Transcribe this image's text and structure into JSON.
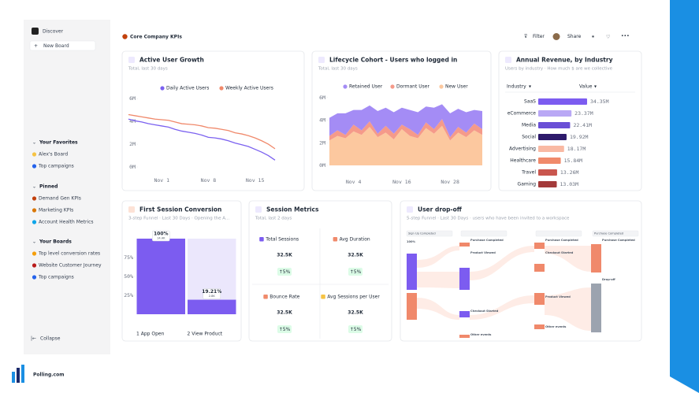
{
  "sidebar": {
    "discover": "Discover",
    "new_board": "New Board",
    "sections": [
      {
        "title": "Your Favorites",
        "items": [
          "Alex's Board",
          "Top campaigns"
        ]
      },
      {
        "title": "Pinned",
        "items": [
          "Demand Gen KPIs",
          "Marketing KPIs",
          "Account Health Metrics"
        ]
      },
      {
        "title": "Your Boards",
        "items": [
          "Top level conversion rates",
          "Website Customer Journey",
          "Top campaigns"
        ]
      }
    ],
    "collapse": "Collapse"
  },
  "header": {
    "title": "Core Company KPIs",
    "filter": "Filter",
    "share": "Share"
  },
  "chart_data": [
    {
      "type": "line",
      "title": "Active User Growth",
      "subtitle": "Total, last 30 days",
      "categories": [
        null,
        null,
        null,
        null,
        null,
        "Nov 1",
        null,
        null,
        null,
        null,
        null,
        null,
        "Nov 8",
        null,
        null,
        null,
        null,
        null,
        null,
        "Nov 15",
        null,
        null,
        null
      ],
      "series": [
        {
          "name": "Daily Active Users",
          "color": "#7b61f0",
          "values": [
            4.2,
            4.05,
            3.95,
            3.8,
            3.7,
            3.6,
            3.5,
            3.3,
            3.15,
            3.05,
            2.95,
            2.8,
            2.6,
            2.55,
            2.45,
            2.3,
            2.1,
            1.95,
            1.8,
            1.55,
            1.3,
            1.0,
            0.6
          ]
        },
        {
          "name": "Weekly Active Users",
          "color": "#f0896b",
          "values": [
            4.6,
            4.5,
            4.4,
            4.3,
            4.2,
            4.15,
            4.1,
            3.95,
            3.8,
            3.75,
            3.7,
            3.6,
            3.45,
            3.4,
            3.3,
            3.2,
            3.0,
            2.9,
            2.75,
            2.55,
            2.3,
            2.0,
            1.6
          ]
        }
      ],
      "ylim": [
        0,
        6.5
      ],
      "yticks": [
        {
          "value": 0,
          "label": "0M"
        },
        {
          "value": 2,
          "label": "2M"
        },
        {
          "value": 4,
          "label": "4M"
        },
        {
          "value": 6,
          "label": "6M"
        }
      ]
    },
    {
      "type": "area",
      "stacked": true,
      "title": "Lifecycle Cohort - Users who logged in",
      "subtitle": "Total, last 30 days",
      "categories": [
        null,
        null,
        null,
        "Nov 4",
        null,
        null,
        null,
        null,
        null,
        "Nov 16",
        null,
        null,
        null,
        null,
        null,
        "Nov 28",
        null,
        null,
        null,
        null
      ],
      "series": [
        {
          "name": "Retained User",
          "color": "#a48cf5",
          "values": [
            1.6,
            1.5,
            1.9,
            1.3,
            1.8,
            1.4,
            2.0,
            1.6,
            1.9,
            1.5,
            1.7,
            2.0,
            1.4,
            1.9,
            1.3,
            2.1,
            1.6,
            1.8,
            1.2,
            1.6
          ]
        },
        {
          "name": "Dormant User",
          "color": "#f59a8a",
          "values": [
            0.4,
            0.5,
            0.3,
            0.6,
            0.4,
            0.5,
            0.3,
            0.6,
            0.5,
            0.4,
            0.6,
            0.3,
            0.5,
            0.4,
            0.6,
            0.3,
            0.5,
            0.4,
            0.6,
            0.5
          ]
        },
        {
          "name": "New User",
          "color": "#fcc89f",
          "values": [
            2.2,
            2.6,
            2.4,
            3.0,
            2.7,
            3.4,
            2.5,
            2.9,
            2.3,
            3.2,
            2.6,
            2.4,
            3.3,
            2.8,
            3.5,
            2.2,
            2.9,
            2.5,
            3.1,
            2.7
          ]
        }
      ],
      "ylim": [
        0,
        6.4
      ],
      "yticks": [
        {
          "value": 0,
          "label": "0M"
        },
        {
          "value": 2,
          "label": "2M"
        },
        {
          "value": 4,
          "label": "4M"
        },
        {
          "value": 6,
          "label": "6M"
        }
      ]
    },
    {
      "type": "bar",
      "orientation": "horizontal",
      "title": "Annual Revenue, by Industry",
      "subtitle": "Users by industry · How much $ are we collective",
      "column_headers": [
        "Industry",
        "Value"
      ],
      "categories": [
        "SaaS",
        "eCommerce",
        "Media",
        "Social",
        "Advertising",
        "Healthcare",
        "Travel",
        "Gaming"
      ],
      "values": [
        34.35,
        23.37,
        22.41,
        19.92,
        18.17,
        15.84,
        13.26,
        13.03
      ],
      "value_labels": [
        "34.35M",
        "23.37M",
        "22.41M",
        "19.92M",
        "18.17M",
        "15.84M",
        "13.26M",
        "13.03M"
      ],
      "colors": [
        "#7c5cf0",
        "#b9a8f5",
        "#6a4fd6",
        "#2d1a6b",
        "#f9b9a3",
        "#f08a6b",
        "#c9564e",
        "#a33a3a"
      ]
    },
    {
      "type": "bar",
      "orientation": "vertical",
      "title": "First Session Conversion",
      "subtitle": "3-step Funnel · Last 30 Days · Opening the A...",
      "categories": [
        "1 App Open",
        "2 View Product"
      ],
      "values": [
        100,
        19.21
      ],
      "value_labels": [
        "100%",
        "19.21%"
      ],
      "count_labels": [
        "14.4K",
        "2.8K"
      ],
      "color": "#7c5cf0",
      "ylim": [
        0,
        100
      ],
      "yticks": [
        {
          "value": 25,
          "label": "25%"
        },
        {
          "value": 50,
          "label": "50%"
        },
        {
          "value": 75,
          "label": "75%"
        }
      ]
    }
  ],
  "session_metrics": {
    "title": "Session Metrics",
    "subtitle": "Total, last 2 days",
    "metrics": [
      {
        "label": "Total Sessions",
        "value": "32.5K",
        "change": "↑5%"
      },
      {
        "label": "Avg Duration",
        "value": "32.5K",
        "change": "↑5%"
      },
      {
        "label": "Bounce Rate",
        "value": "32.5K",
        "change": "↑5%"
      },
      {
        "label": "Avg Sessions per User",
        "value": "32.5K",
        "change": "↑5%"
      }
    ]
  },
  "user_dropoff": {
    "title": "User drop-off",
    "subtitle": "5-step Funnel · Last 30 Days · users who have been invited to a workspace",
    "columns": [
      {
        "header": "Sign Up Completed",
        "nodes": [
          "100%"
        ]
      },
      {
        "header": null,
        "nodes": [
          "Purchase Completed",
          "Product Viewed",
          "Checkout Started",
          "Other events"
        ]
      },
      {
        "header": null,
        "nodes": [
          "Purchase Completed",
          "Checkout Started",
          "Product Viewed",
          "Other events"
        ]
      },
      {
        "header": "Purchase Completed",
        "nodes": [
          "Purchase Completed",
          "Drop-off"
        ]
      }
    ]
  },
  "brand": "Polling.com"
}
